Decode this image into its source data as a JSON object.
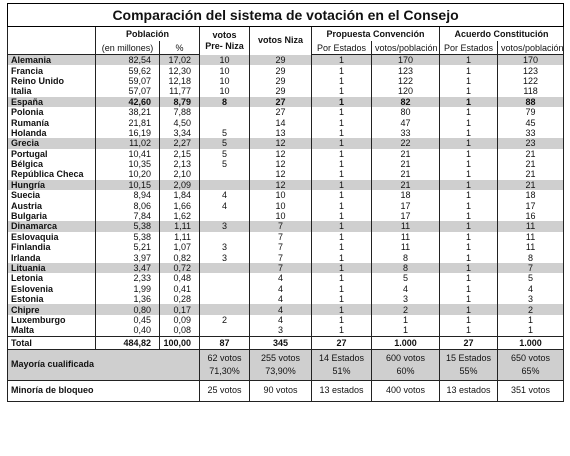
{
  "table": {
    "title": "Comparación del sistema de votación en el Consejo",
    "header": {
      "poblacion": "Población",
      "pop_millones": "(en millones)",
      "pop_pct": "%",
      "votos_pre_niza": "votos Pre- Niza",
      "votos_niza": "votos Niza",
      "convencion": "Propuesta Convención",
      "conv_estados": "Por Estados",
      "conv_votos": "votos/población",
      "acuerdo": "Acuerdo Constitución",
      "acu_estados": "Por Estados",
      "acu_votos": "votos/población"
    },
    "rows": [
      [
        "Alemania",
        "82,54",
        "17,02",
        "10",
        "29",
        "1",
        "170",
        "1",
        "170"
      ],
      [
        "Francia",
        "59,62",
        "12,30",
        "10",
        "29",
        "1",
        "123",
        "1",
        "123"
      ],
      [
        "Reino Unido",
        "59,07",
        "12,18",
        "10",
        "29",
        "1",
        "122",
        "1",
        "122"
      ],
      [
        "Italia",
        "57,07",
        "11,77",
        "10",
        "29",
        "1",
        "120",
        "1",
        "118"
      ],
      [
        "España",
        "42,60",
        "8,79",
        "8",
        "27",
        "1",
        "82",
        "1",
        "88"
      ],
      [
        "Polonia",
        "38,21",
        "7,88",
        null,
        "27",
        "1",
        "80",
        "1",
        "79"
      ],
      [
        "Rumanía",
        "21,81",
        "4,50",
        null,
        "14",
        "1",
        "47",
        "1",
        "45"
      ],
      [
        "Holanda",
        "16,19",
        "3,34",
        "5",
        "13",
        "1",
        "33",
        "1",
        "33"
      ],
      [
        "Grecia",
        "11,02",
        "2,27",
        "5",
        "12",
        "1",
        "22",
        "1",
        "23"
      ],
      [
        "Portugal",
        "10,41",
        "2,15",
        "5",
        "12",
        "1",
        "21",
        "1",
        "21"
      ],
      [
        "Bélgica",
        "10,35",
        "2,13",
        "5",
        "12",
        "1",
        "21",
        "1",
        "21"
      ],
      [
        "República Checa",
        "10,20",
        "2,10",
        null,
        "12",
        "1",
        "21",
        "1",
        "21"
      ],
      [
        "Hungría",
        "10,15",
        "2,09",
        null,
        "12",
        "1",
        "21",
        "1",
        "21"
      ],
      [
        "Suecia",
        "8,94",
        "1,84",
        "4",
        "10",
        "1",
        "18",
        "1",
        "18"
      ],
      [
        "Austria",
        "8,06",
        "1,66",
        "4",
        "10",
        "1",
        "17",
        "1",
        "17"
      ],
      [
        "Bulgaria",
        "7,84",
        "1,62",
        null,
        "10",
        "1",
        "17",
        "1",
        "16"
      ],
      [
        "Dinamarca",
        "5,38",
        "1,11",
        "3",
        "7",
        "1",
        "11",
        "1",
        "11"
      ],
      [
        "Eslovaquia",
        "5,38",
        "1,11",
        null,
        "7",
        "1",
        "11",
        "1",
        "11"
      ],
      [
        "Finlandia",
        "5,21",
        "1,07",
        "3",
        "7",
        "1",
        "11",
        "1",
        "11"
      ],
      [
        "Irlanda",
        "3,97",
        "0,82",
        "3",
        "7",
        "1",
        "8",
        "1",
        "8"
      ],
      [
        "Lituania",
        "3,47",
        "0,72",
        null,
        "7",
        "1",
        "8",
        "1",
        "7"
      ],
      [
        "Letonia",
        "2,33",
        "0,48",
        null,
        "4",
        "1",
        "5",
        "1",
        "5"
      ],
      [
        "Eslovenia",
        "1,99",
        "0,41",
        null,
        "4",
        "1",
        "4",
        "1",
        "4"
      ],
      [
        "Estonia",
        "1,36",
        "0,28",
        null,
        "4",
        "1",
        "3",
        "1",
        "3"
      ],
      [
        "Chipre",
        "0,80",
        "0,17",
        null,
        "4",
        "1",
        "2",
        "1",
        "2"
      ],
      [
        "Luxemburgo",
        "0,45",
        "0,09",
        "2",
        "4",
        "1",
        "1",
        "1",
        "1"
      ],
      [
        "Malta",
        "0,40",
        "0,08",
        null,
        "3",
        "1",
        "1",
        "1",
        "1"
      ]
    ],
    "total": [
      "Total",
      "484,82",
      "100,00",
      "87",
      "345",
      "27",
      "1.000",
      "27",
      "1.000"
    ],
    "summary": [
      {
        "label": "Mayoría cualificada",
        "cells": [
          [
            "62 votos",
            "71,30%"
          ],
          [
            "255 votos",
            "73,90%"
          ],
          [
            "14 Estados",
            "51%"
          ],
          [
            "600 votos",
            "60%"
          ],
          [
            "15 Estados",
            "55%"
          ],
          [
            "650 votos",
            "65%"
          ]
        ]
      },
      {
        "label": "Minoría de bloqueo",
        "cells": [
          [
            "25 votos"
          ],
          [
            "90 votos"
          ],
          [
            "13 estados"
          ],
          [
            "400 votos"
          ],
          [
            "13 estados"
          ],
          [
            "351 votos"
          ]
        ]
      }
    ]
  }
}
